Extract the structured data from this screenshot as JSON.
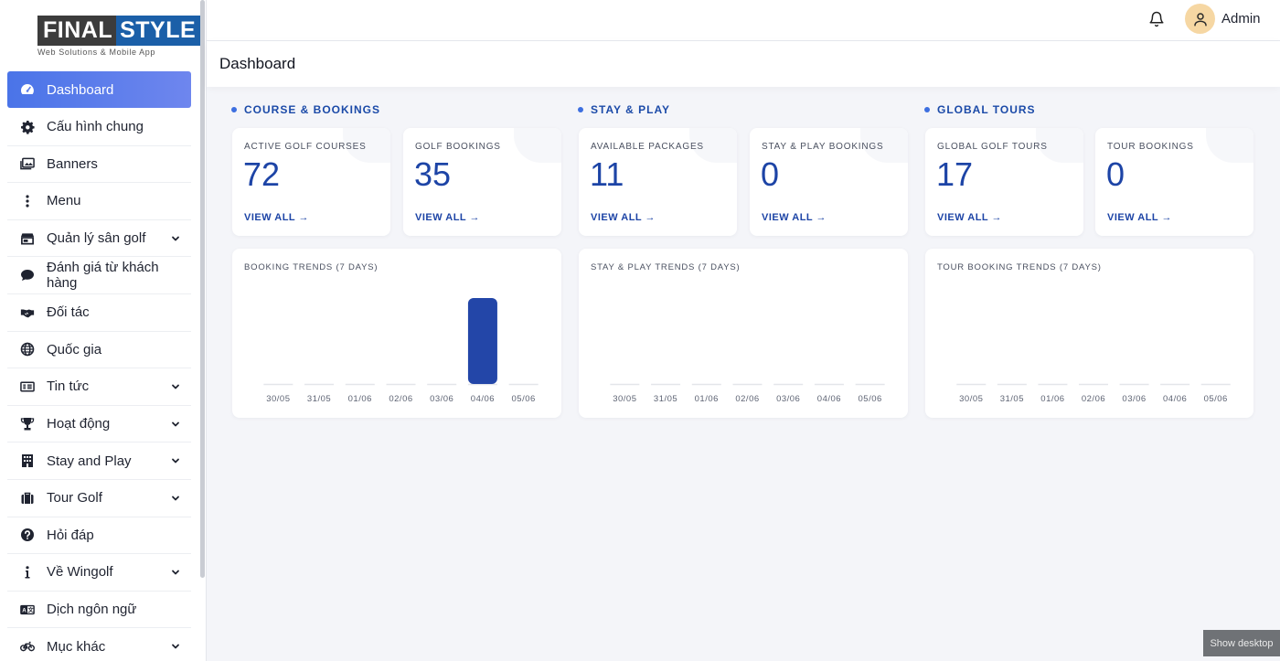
{
  "logo": {
    "word1": "FINAL",
    "word2": "STYLE",
    "tagline": "Web Solutions & Mobile App"
  },
  "topbar": {
    "user_name": "Admin",
    "notification_icon": "bell-icon",
    "avatar_icon": "user-icon",
    "avatar_color": "#f6d7a3"
  },
  "page": {
    "title": "Dashboard"
  },
  "sidebar": {
    "items": [
      {
        "label": "Dashboard",
        "icon": "gauge-icon",
        "active": true,
        "has_caret": false
      },
      {
        "label": "Cấu hình chung",
        "icon": "gear-icon",
        "active": false,
        "has_caret": false
      },
      {
        "label": "Banners",
        "icon": "images-icon",
        "active": false,
        "has_caret": false
      },
      {
        "label": "Menu",
        "icon": "dots-vertical-icon",
        "active": false,
        "has_caret": false
      },
      {
        "label": "Quản lý sân golf",
        "icon": "store-icon",
        "active": false,
        "has_caret": true
      },
      {
        "label": "Đánh giá từ khách hàng",
        "icon": "comment-icon",
        "active": false,
        "has_caret": false
      },
      {
        "label": "Đối tác",
        "icon": "handshake-icon",
        "active": false,
        "has_caret": false
      },
      {
        "label": "Quốc gia",
        "icon": "globe-icon",
        "active": false,
        "has_caret": false
      },
      {
        "label": "Tin tức",
        "icon": "news-icon",
        "active": false,
        "has_caret": true
      },
      {
        "label": "Hoạt động",
        "icon": "trophy-icon",
        "active": false,
        "has_caret": true
      },
      {
        "label": "Stay and Play",
        "icon": "building-icon",
        "active": false,
        "has_caret": true
      },
      {
        "label": "Tour Golf",
        "icon": "suitcase-icon",
        "active": false,
        "has_caret": true
      },
      {
        "label": "Hỏi đáp",
        "icon": "question-icon",
        "active": false,
        "has_caret": false
      },
      {
        "label": "Về Wingolf",
        "icon": "info-icon",
        "active": false,
        "has_caret": true
      },
      {
        "label": "Dịch ngôn ngữ",
        "icon": "language-icon",
        "active": false,
        "has_caret": false
      },
      {
        "label": "Mục khác",
        "icon": "bicycle-icon",
        "active": false,
        "has_caret": true
      }
    ]
  },
  "sections": [
    {
      "title": "COURSE & BOOKINGS",
      "stats": [
        {
          "label": "ACTIVE GOLF COURSES",
          "value": "72",
          "link": "VIEW ALL →"
        },
        {
          "label": "GOLF BOOKINGS",
          "value": "35",
          "link": "VIEW ALL →"
        }
      ]
    },
    {
      "title": "STAY & PLAY",
      "stats": [
        {
          "label": "AVAILABLE PACKAGES",
          "value": "11",
          "link": "VIEW ALL →"
        },
        {
          "label": "STAY & PLAY BOOKINGS",
          "value": "0",
          "link": "VIEW ALL →"
        }
      ]
    },
    {
      "title": "GLOBAL TOURS",
      "stats": [
        {
          "label": "GLOBAL GOLF TOURS",
          "value": "17",
          "link": "VIEW ALL →"
        },
        {
          "label": "TOUR BOOKINGS",
          "value": "0",
          "link": "VIEW ALL →"
        }
      ]
    }
  ],
  "chart_data": [
    {
      "type": "bar",
      "title": "BOOKING TRENDS (7 DAYS)",
      "categories": [
        "30/05",
        "31/05",
        "01/06",
        "02/06",
        "03/06",
        "04/06",
        "05/06"
      ],
      "values": [
        0,
        0,
        0,
        0,
        0,
        35,
        0
      ],
      "color": "#2346a8"
    },
    {
      "type": "bar",
      "title": "STAY & PLAY TRENDS (7 DAYS)",
      "categories": [
        "30/05",
        "31/05",
        "01/06",
        "02/06",
        "03/06",
        "04/06",
        "05/06"
      ],
      "values": [
        0,
        0,
        0,
        0,
        0,
        0,
        0
      ],
      "color": "#2346a8"
    },
    {
      "type": "bar",
      "title": "TOUR BOOKING TRENDS (7 DAYS)",
      "categories": [
        "30/05",
        "31/05",
        "01/06",
        "02/06",
        "03/06",
        "04/06",
        "05/06"
      ],
      "values": [
        0,
        0,
        0,
        0,
        0,
        0,
        0
      ],
      "color": "#2346a8"
    }
  ],
  "taskbar": {
    "show_desktop": "Show desktop"
  }
}
